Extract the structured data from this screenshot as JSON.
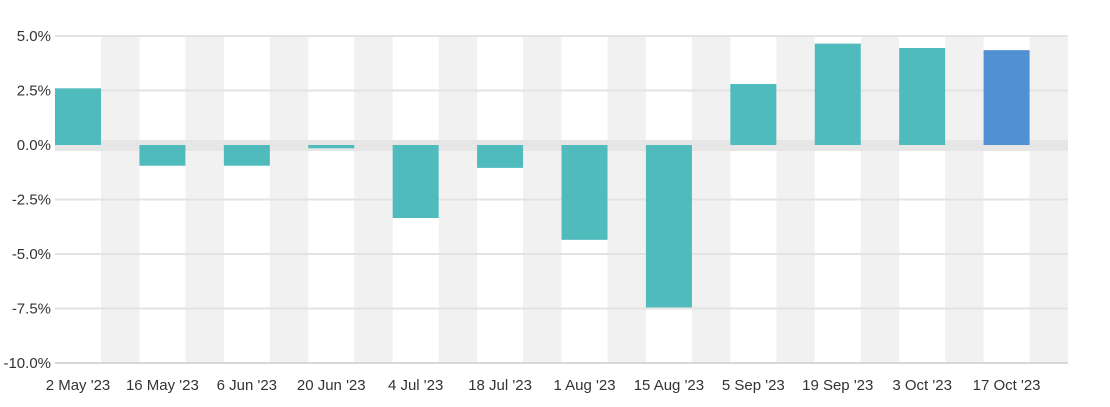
{
  "chart_data": {
    "type": "bar",
    "title": "",
    "xlabel": "",
    "ylabel": "",
    "categories": [
      "2 May '23",
      "16 May '23",
      "6 Jun '23",
      "20 Jun '23",
      "4 Jul '23",
      "18 Jul '23",
      "1 Aug '23",
      "15 Aug '23",
      "5 Sep '23",
      "19 Sep '23",
      "3 Oct '23",
      "17 Oct '23"
    ],
    "values": [
      2.6,
      -0.95,
      -0.95,
      -0.15,
      -3.35,
      -1.05,
      -4.35,
      -7.45,
      2.8,
      4.65,
      4.45,
      4.35
    ],
    "ylim": [
      -10,
      5
    ],
    "yticks": [
      5,
      2.5,
      0,
      -2.5,
      -5,
      -7.5,
      -10
    ],
    "ytick_labels": [
      "5.0%",
      "2.5%",
      "0.0%",
      "-2.5%",
      "-5.0%",
      "-7.5%",
      "-10.0%"
    ],
    "grid": true,
    "legend": "none",
    "colors": {
      "bar": "#4fbbbd",
      "bar_highlight": "#5090d3",
      "band": "#f1f1f1",
      "zero_band": "#e6e6e6",
      "gridline": "#e3e3e3",
      "axis": "#d8d8d8",
      "text": "#333333"
    },
    "highlight_index": 11
  }
}
